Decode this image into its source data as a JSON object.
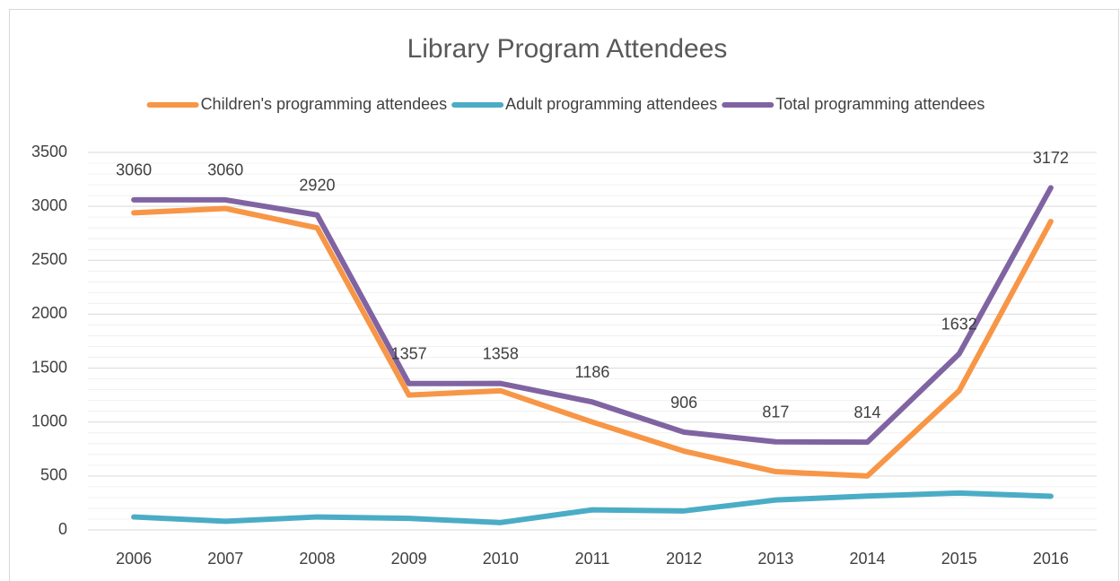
{
  "chart_data": {
    "type": "line",
    "title": "Library Program Attendees",
    "categories": [
      "2006",
      "2007",
      "2008",
      "2009",
      "2010",
      "2011",
      "2012",
      "2013",
      "2014",
      "2015",
      "2016"
    ],
    "series": [
      {
        "name": "Children's programming attendees",
        "color": "#f79646",
        "values": [
          2940,
          2980,
          2800,
          1250,
          1290,
          1000,
          730,
          540,
          500,
          1290,
          2860
        ]
      },
      {
        "name": "Adult programming attendees",
        "color": "#4bacc6",
        "values": [
          120,
          80,
          120,
          107,
          68,
          186,
          176,
          277,
          314,
          342,
          312
        ]
      },
      {
        "name": "Total programming attendees",
        "color": "#8064a2",
        "values": [
          3060,
          3060,
          2920,
          1357,
          1358,
          1186,
          906,
          817,
          814,
          1632,
          3172
        ],
        "data_labels": true
      }
    ],
    "ylim": [
      0,
      3500
    ],
    "yticks": [
      0,
      500,
      1000,
      1500,
      2000,
      2500,
      3000,
      3500
    ],
    "grid": true,
    "legend": "top"
  }
}
